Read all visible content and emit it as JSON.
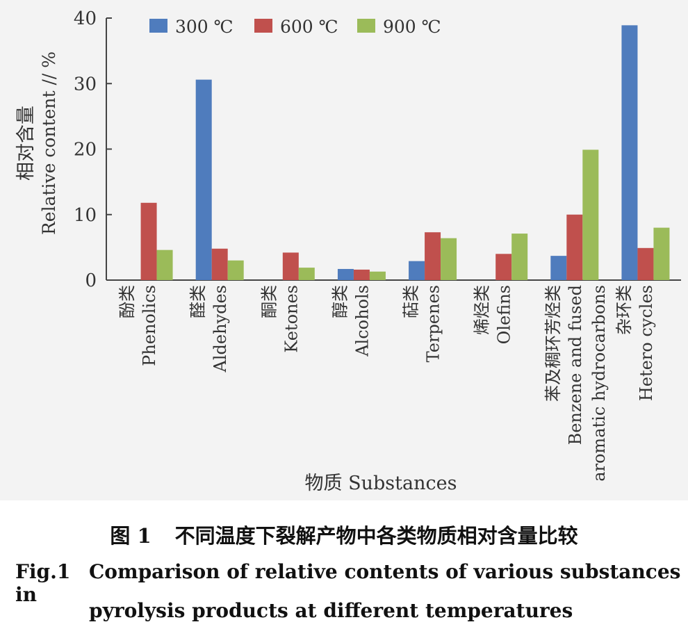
{
  "chart_data": {
    "type": "bar",
    "ylim": [
      0,
      40
    ],
    "yticks": [
      0,
      10,
      20,
      30,
      40
    ],
    "ylabel_cn": "相对含量",
    "ylabel_en": "Relative content // %",
    "xlabel": "物质 Substances",
    "categories": [
      {
        "cn": "酚类",
        "en": [
          "Phenolics"
        ]
      },
      {
        "cn": "醛类",
        "en": [
          "Aldehydes"
        ]
      },
      {
        "cn": "酮类",
        "en": [
          "Ketones"
        ]
      },
      {
        "cn": "醇类",
        "en": [
          "Alcohols"
        ]
      },
      {
        "cn": "萜类",
        "en": [
          "Terpenes"
        ]
      },
      {
        "cn": "烯烃类",
        "en": [
          "Olefins"
        ]
      },
      {
        "cn": "苯及稠环芳烃类",
        "en": [
          "Benzene and fused",
          "aromatic hydrocarbons"
        ]
      },
      {
        "cn": "杂环类",
        "en": [
          "Hetero cycles"
        ]
      }
    ],
    "series": [
      {
        "name": "300 ℃",
        "color": "#4f7cbd",
        "values": [
          0,
          30.6,
          0,
          1.7,
          2.9,
          0,
          3.7,
          38.9
        ]
      },
      {
        "name": "600 ℃",
        "color": "#c0504d",
        "values": [
          11.8,
          4.8,
          4.2,
          1.6,
          7.3,
          4.0,
          10.0,
          4.9
        ]
      },
      {
        "name": "900 ℃",
        "color": "#9bbb59",
        "values": [
          4.6,
          3.0,
          1.9,
          1.3,
          6.4,
          7.1,
          19.9,
          8.0
        ]
      }
    ],
    "legend_position": "top"
  },
  "caption": {
    "cn_num": "图 1",
    "cn_text": "不同温度下裂解产物中各类物质相对含量比较",
    "en_num": "Fig.1",
    "en_line1": "Comparison of relative contents of various substances in",
    "en_line2": "pyrolysis products at different temperatures"
  }
}
